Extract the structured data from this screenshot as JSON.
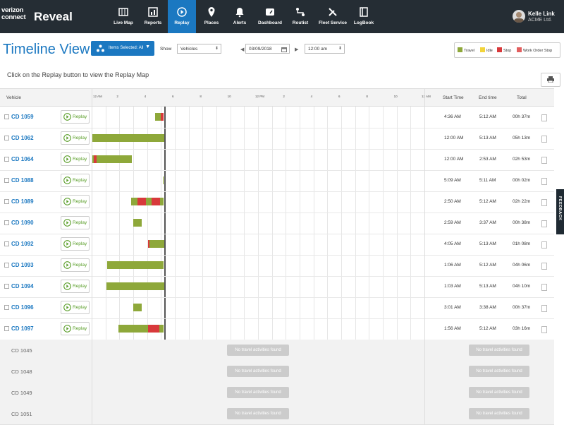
{
  "brand": {
    "company": "verizon connect",
    "app": "Reveal"
  },
  "nav": [
    {
      "label": "Live Map",
      "icon": "map-icon"
    },
    {
      "label": "Reports",
      "icon": "report-icon"
    },
    {
      "label": "Replay",
      "icon": "replay-icon",
      "active": true
    },
    {
      "label": "Places",
      "icon": "pin-icon"
    },
    {
      "label": "Alerts",
      "icon": "bell-icon"
    },
    {
      "label": "Dashboard",
      "icon": "dashboard-icon"
    },
    {
      "label": "Routist",
      "icon": "route-icon"
    },
    {
      "label": "Fleet Service",
      "icon": "wrench-icon"
    },
    {
      "label": "LogBook",
      "icon": "logbook-icon"
    }
  ],
  "user": {
    "name": "Kelle Link",
    "company": "ACME Ltd."
  },
  "title": "Timeline View",
  "scope": {
    "label": "Items Selected: All"
  },
  "show": {
    "label": "Show",
    "value": "Vehicles"
  },
  "date": "03/09/2018",
  "time": "12:00 am",
  "legend": [
    {
      "label": "Travel",
      "color": "#8ea83a"
    },
    {
      "label": "Idle",
      "color": "#f2d43b"
    },
    {
      "label": "Stop",
      "color": "#d8393b"
    },
    {
      "label": "Work Order Stop",
      "color": "#e25f5f"
    }
  ],
  "hint": "Click on the Replay button to view the Replay Map",
  "headers": {
    "vehicle": "Vehicle",
    "start": "Start Time",
    "end": "End time",
    "total": "Total"
  },
  "ticks": [
    "12 AM",
    "2",
    "4",
    "6",
    "8",
    "10",
    "12 PM",
    "2",
    "4",
    "6",
    "8",
    "10",
    "12 AM"
  ],
  "replay_label": "Replay",
  "rows": [
    {
      "vehicle": "CD 1059",
      "start": "4:36 AM",
      "end": "5:12 AM",
      "total": "00h 37m",
      "segments": [
        {
          "s": 4.6,
          "e": 5.0,
          "t": "travel"
        },
        {
          "s": 5.0,
          "e": 5.2,
          "t": "stop"
        }
      ]
    },
    {
      "vehicle": "CD 1062",
      "start": "12:00 AM",
      "end": "5:13 AM",
      "total": "05h 13m",
      "segments": [
        {
          "s": 0.0,
          "e": 5.22,
          "t": "travel"
        }
      ]
    },
    {
      "vehicle": "CD 1064",
      "start": "12:00 AM",
      "end": "2:53 AM",
      "total": "02h 53m",
      "segments": [
        {
          "s": 0.0,
          "e": 0.15,
          "t": "travel"
        },
        {
          "s": 0.15,
          "e": 0.35,
          "t": "stop"
        },
        {
          "s": 0.35,
          "e": 2.88,
          "t": "travel"
        }
      ]
    },
    {
      "vehicle": "CD 1088",
      "start": "5:09 AM",
      "end": "5:11 AM",
      "total": "00h 02m",
      "segments": [
        {
          "s": 5.15,
          "e": 5.2,
          "t": "travel"
        }
      ]
    },
    {
      "vehicle": "CD 1089",
      "start": "2:50 AM",
      "end": "5:12 AM",
      "total": "02h 22m",
      "segments": [
        {
          "s": 2.83,
          "e": 3.3,
          "t": "travel"
        },
        {
          "s": 3.3,
          "e": 3.9,
          "t": "stop"
        },
        {
          "s": 3.9,
          "e": 4.3,
          "t": "travel"
        },
        {
          "s": 4.3,
          "e": 4.95,
          "t": "stop"
        },
        {
          "s": 4.95,
          "e": 5.2,
          "t": "travel"
        }
      ]
    },
    {
      "vehicle": "CD 1090",
      "start": "2:59 AM",
      "end": "3:37 AM",
      "total": "00h 38m",
      "segments": [
        {
          "s": 2.98,
          "e": 3.62,
          "t": "travel"
        }
      ]
    },
    {
      "vehicle": "CD 1092",
      "start": "4:05 AM",
      "end": "5:13 AM",
      "total": "01h 08m",
      "segments": [
        {
          "s": 4.05,
          "e": 4.15,
          "t": "stop"
        },
        {
          "s": 4.15,
          "e": 5.22,
          "t": "travel"
        }
      ]
    },
    {
      "vehicle": "CD 1093",
      "start": "1:06 AM",
      "end": "5:12 AM",
      "total": "04h 06m",
      "segments": [
        {
          "s": 1.1,
          "e": 5.2,
          "t": "travel"
        }
      ]
    },
    {
      "vehicle": "CD 1094",
      "start": "1:03 AM",
      "end": "5:13 AM",
      "total": "04h 10m",
      "segments": [
        {
          "s": 1.05,
          "e": 5.22,
          "t": "travel"
        }
      ]
    },
    {
      "vehicle": "CD 1096",
      "start": "3:01 AM",
      "end": "3:38 AM",
      "total": "00h 37m",
      "segments": [
        {
          "s": 3.02,
          "e": 3.63,
          "t": "travel"
        }
      ]
    },
    {
      "vehicle": "CD 1097",
      "start": "1:56 AM",
      "end": "5:12 AM",
      "total": "03h 16m",
      "segments": [
        {
          "s": 1.93,
          "e": 4.05,
          "t": "travel"
        },
        {
          "s": 4.05,
          "e": 4.9,
          "t": "stop"
        },
        {
          "s": 4.9,
          "e": 5.2,
          "t": "travel"
        }
      ]
    }
  ],
  "empty_rows": [
    {
      "vehicle": "CD 1045"
    },
    {
      "vehicle": "CD 1048"
    },
    {
      "vehicle": "CD 1049"
    },
    {
      "vehicle": "CD 1051"
    }
  ],
  "no_activity": "No travel activities found",
  "feedback": "FEEDBACK",
  "now_hour": 5.22
}
